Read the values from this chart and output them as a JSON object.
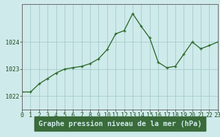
{
  "x": [
    0,
    1,
    2,
    3,
    4,
    5,
    6,
    7,
    8,
    9,
    10,
    11,
    12,
    13,
    14,
    15,
    16,
    17,
    18,
    19,
    20,
    21,
    22,
    23
  ],
  "y": [
    1022.15,
    1022.15,
    1022.45,
    1022.65,
    1022.85,
    1023.0,
    1023.05,
    1023.1,
    1023.2,
    1023.38,
    1023.72,
    1024.3,
    1024.42,
    1025.05,
    1024.58,
    1024.15,
    1023.25,
    1023.05,
    1023.1,
    1023.55,
    1024.0,
    1023.75,
    1023.87,
    1024.0
  ],
  "xlim": [
    0,
    23
  ],
  "ylim": [
    1021.5,
    1025.4
  ],
  "yticks": [
    1022,
    1023,
    1024
  ],
  "xticks": [
    0,
    1,
    2,
    3,
    4,
    5,
    6,
    7,
    8,
    9,
    10,
    11,
    12,
    13,
    14,
    15,
    16,
    17,
    18,
    19,
    20,
    21,
    22,
    23
  ],
  "line_color": "#2d6b2d",
  "marker": "+",
  "marker_size": 3.5,
  "marker_color": "#2d6b2d",
  "bg_color": "#ceeaea",
  "grid_color": "#9cc4c4",
  "axis_color": "#666666",
  "xlabel": "Graphe pression niveau de la mer (hPa)",
  "xlabel_color": "#1a4a1a",
  "xlabel_fontsize": 7.5,
  "tick_fontsize": 6,
  "tick_color": "#1a4a1a",
  "line_width": 1.0,
  "bottom_bg": "#3a6b3a",
  "bottom_text_color": "#ceeaea"
}
